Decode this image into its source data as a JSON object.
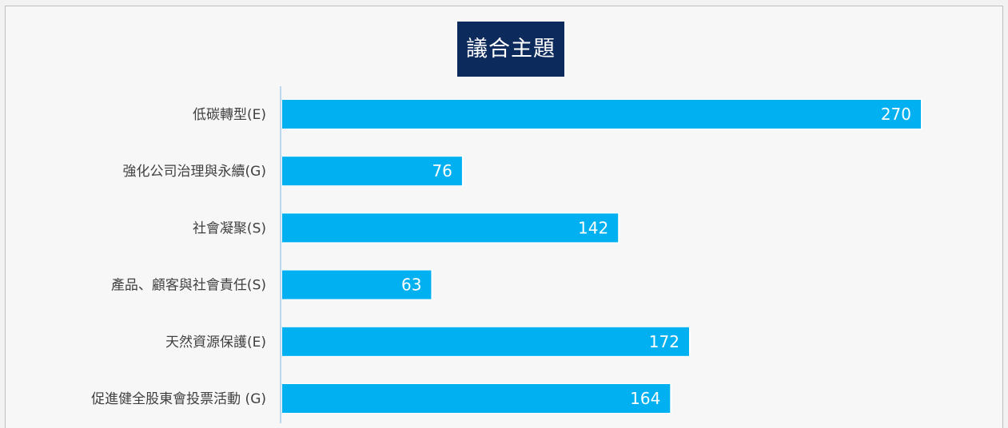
{
  "chart_data": {
    "type": "bar",
    "orientation": "horizontal",
    "title": "議合主題",
    "categories": [
      "低碳轉型(E)",
      "強化公司治理與永續(G)",
      "社會凝聚(S)",
      "產品、顧客與社會責任(S)",
      "天然資源保護(E)",
      "促進健全股東會投票活動 (G)"
    ],
    "values": [
      270,
      76,
      142,
      63,
      172,
      164
    ],
    "xlim": [
      0,
      270
    ],
    "grid": false,
    "legend": "none",
    "data_labels": true
  },
  "colors": {
    "bar": "#00b0f0",
    "title_bg": "#0d2a5c",
    "axis": "#bdd7ee"
  }
}
